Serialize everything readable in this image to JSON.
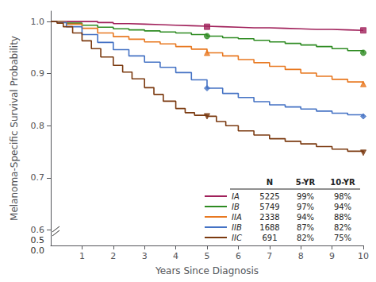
{
  "chart_data": {
    "type": "line",
    "line_style": "step",
    "xlabel": "Years Since Diagnosis",
    "ylabel": "Melanoma-Specific Survival Probability",
    "xlim": [
      0,
      10
    ],
    "ylim": [
      0.57,
      1.02
    ],
    "xticks": [
      1,
      2,
      3,
      4,
      5,
      6,
      7,
      8,
      9,
      10
    ],
    "yticks": [
      0.6,
      0.7,
      0.8,
      0.9,
      {
        "value": 1.0,
        "label": "1.0"
      }
    ],
    "grid": false,
    "table_header": [
      "N",
      "5-YR",
      "10-YR"
    ],
    "annotations": [
      {
        "text": "0.0"
      },
      {
        "text": "0.5"
      }
    ],
    "series": [
      {
        "name": "IA",
        "color": "#A0205A",
        "marker": "square",
        "x": [
          0,
          0.2,
          0.5,
          1.0,
          1.5,
          2.0,
          2.5,
          3.0,
          3.5,
          4.0,
          4.5,
          5.0,
          5.5,
          6.0,
          6.5,
          7.0,
          7.5,
          8.0,
          8.5,
          9.0,
          9.5,
          10.0
        ],
        "values": [
          1.0,
          1.0,
          1.0,
          1.0,
          0.998,
          0.996,
          0.995,
          0.994,
          0.993,
          0.992,
          0.991,
          0.99,
          0.989,
          0.988,
          0.988,
          0.987,
          0.986,
          0.985,
          0.985,
          0.984,
          0.983,
          0.983
        ],
        "marker_x": [
          5,
          10
        ],
        "marker_values": [
          0.99,
          0.983
        ],
        "table_row": [
          "5225",
          "99%",
          "98%"
        ]
      },
      {
        "name": "IB",
        "color": "#2E8B22",
        "marker": "circle",
        "x": [
          0,
          0.2,
          0.5,
          1.0,
          1.5,
          2.0,
          2.5,
          3.0,
          3.5,
          4.0,
          4.5,
          5.0,
          5.5,
          6.0,
          6.5,
          7.0,
          7.5,
          8.0,
          8.5,
          9.0,
          9.5,
          10.0
        ],
        "values": [
          1.0,
          0.999,
          0.997,
          0.993,
          0.989,
          0.986,
          0.984,
          0.982,
          0.98,
          0.978,
          0.975,
          0.972,
          0.969,
          0.967,
          0.964,
          0.961,
          0.958,
          0.955,
          0.952,
          0.948,
          0.944,
          0.94
        ],
        "marker_x": [
          5,
          10
        ],
        "marker_values": [
          0.972,
          0.94
        ],
        "table_row": [
          "5749",
          "97%",
          "94%"
        ]
      },
      {
        "name": "IIA",
        "color": "#E87820",
        "marker": "triangle-up",
        "x": [
          0,
          0.2,
          0.5,
          1.0,
          1.5,
          2.0,
          2.5,
          3.0,
          3.5,
          4.0,
          4.5,
          5.0,
          5.5,
          6.0,
          6.5,
          7.0,
          7.5,
          8.0,
          8.5,
          9.0,
          9.5,
          10.0
        ],
        "values": [
          1.0,
          0.999,
          0.995,
          0.987,
          0.978,
          0.971,
          0.966,
          0.961,
          0.957,
          0.952,
          0.947,
          0.94,
          0.934,
          0.927,
          0.921,
          0.914,
          0.908,
          0.901,
          0.895,
          0.889,
          0.884,
          0.88
        ],
        "marker_x": [
          5,
          10
        ],
        "marker_values": [
          0.94,
          0.88
        ],
        "table_row": [
          "2338",
          "94%",
          "88%"
        ]
      },
      {
        "name": "IIB",
        "color": "#4472C4",
        "marker": "diamond",
        "x": [
          0,
          0.2,
          0.5,
          1.0,
          1.5,
          2.0,
          2.5,
          3.0,
          3.5,
          4.0,
          4.5,
          5.0,
          5.5,
          6.0,
          6.5,
          7.0,
          7.5,
          8.0,
          8.5,
          9.0,
          9.5,
          10.0
        ],
        "values": [
          1.0,
          0.998,
          0.99,
          0.975,
          0.96,
          0.946,
          0.934,
          0.922,
          0.912,
          0.902,
          0.888,
          0.872,
          0.862,
          0.854,
          0.846,
          0.84,
          0.836,
          0.832,
          0.828,
          0.824,
          0.821,
          0.818
        ],
        "marker_x": [
          5,
          10
        ],
        "marker_values": [
          0.872,
          0.818
        ],
        "table_row": [
          "1688",
          "87%",
          "82%"
        ]
      },
      {
        "name": "IIC",
        "color": "#7B3A10",
        "marker": "triangle-down",
        "x": [
          0,
          0.2,
          0.4,
          0.7,
          1.0,
          1.3,
          1.6,
          2.0,
          2.3,
          2.6,
          3.0,
          3.3,
          3.6,
          4.0,
          4.3,
          4.6,
          5.0,
          5.3,
          5.6,
          6.0,
          6.5,
          7.0,
          7.5,
          8.0,
          8.5,
          9.0,
          9.5,
          10.0
        ],
        "values": [
          1.0,
          0.997,
          0.99,
          0.978,
          0.963,
          0.948,
          0.932,
          0.916,
          0.903,
          0.89,
          0.873,
          0.86,
          0.847,
          0.833,
          0.825,
          0.82,
          0.818,
          0.808,
          0.8,
          0.79,
          0.782,
          0.775,
          0.77,
          0.765,
          0.76,
          0.755,
          0.751,
          0.748
        ],
        "marker_x": [
          5,
          10
        ],
        "marker_values": [
          0.818,
          0.748
        ],
        "table_row": [
          "691",
          "82%",
          "75%"
        ]
      }
    ]
  }
}
